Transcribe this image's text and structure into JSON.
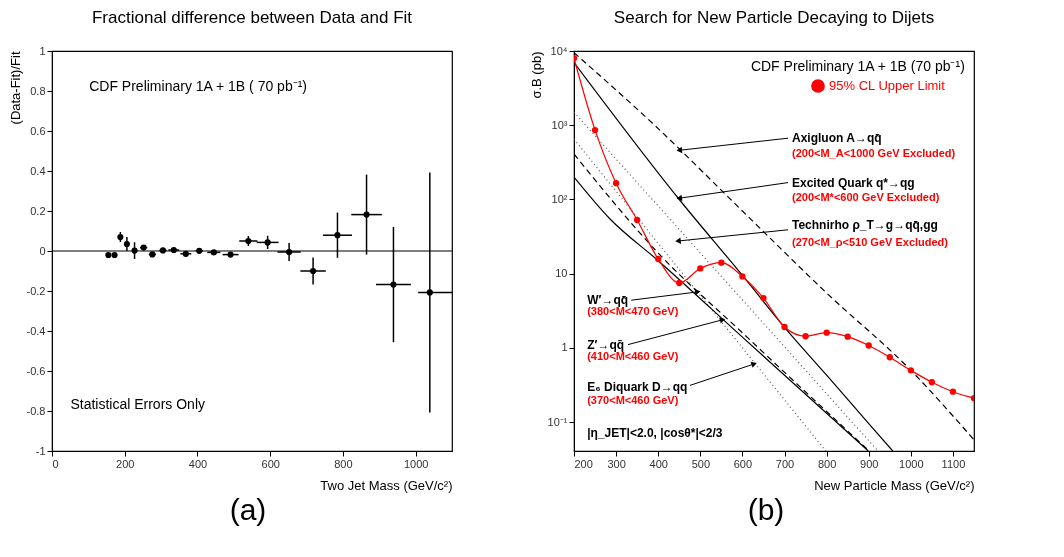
{
  "chart_data": [
    {
      "type": "scatter",
      "title": "Fractional difference between Data and Fit",
      "xlabel": "Two Jet Mass  (GeV/c²)",
      "ylabel": "(Data-Fit)/Fit",
      "xlim": [
        0,
        1100
      ],
      "xticks": [
        0,
        200,
        400,
        600,
        800,
        1000
      ],
      "ylim": [
        -1,
        1
      ],
      "yticks": [
        -1,
        -0.8,
        -0.6,
        -0.4,
        -0.2,
        0,
        0.2,
        0.4,
        0.6,
        0.8,
        1
      ],
      "grid": false,
      "series": [
        {
          "color": "#000000",
          "marker": "circle",
          "x": [
            155,
            172,
            188,
            206,
            227,
            252,
            276,
            305,
            335,
            368,
            405,
            445,
            491,
            540,
            593,
            652,
            718,
            785,
            865,
            939,
            1039
          ],
          "values": [
            -0.02,
            -0.02,
            0.07,
            0.035,
            0.002,
            0.017,
            -0.017,
            0.003,
            0.005,
            -0.014,
            0.001,
            -0.007,
            -0.018,
            0.05,
            0.043,
            -0.005,
            -0.1,
            0.079,
            0.182,
            -0.168,
            -0.207
          ],
          "errors": [
            0.012,
            0.012,
            0.025,
            0.035,
            0.042,
            0.008,
            0.01,
            0.006,
            0.008,
            0.012,
            0.006,
            0.008,
            0.008,
            0.025,
            0.033,
            0.045,
            0.068,
            0.113,
            0.2,
            0.288,
            0.6
          ],
          "xerrors": [
            null,
            null,
            null,
            null,
            null,
            10,
            10,
            10,
            15,
            15,
            10,
            18,
            22,
            25,
            30,
            32,
            35,
            40,
            42,
            48,
            [
              1007,
              1100
            ]
          ]
        }
      ],
      "ref_lines": [
        {
          "axis": "y",
          "value": 0,
          "color": "#000000"
        }
      ],
      "annotations": [
        "CDF Preliminary 1A + 1B ( 70 pb⁻¹)",
        "Statistical Errors Only",
        "(a)"
      ]
    },
    {
      "type": "line",
      "title": "Search for New Particle Decaying to Dijets",
      "xlabel": "New Particle Mass (GeV/c²)",
      "ylabel": "σ.B (pb)",
      "log": "y",
      "xlim": [
        200,
        1150
      ],
      "xticks": [
        200,
        300,
        400,
        500,
        600,
        700,
        800,
        900,
        1000,
        1100
      ],
      "ylim": [
        0.041,
        10000
      ],
      "yticks": [
        {
          "value": 0.1,
          "label": "10⁻¹"
        },
        {
          "value": 1,
          "label": "1"
        },
        {
          "value": 10,
          "label": "10"
        },
        {
          "value": 100,
          "label": "10²"
        },
        {
          "value": 1000,
          "label": "10³"
        },
        {
          "value": 10000,
          "label": "10⁴"
        }
      ],
      "grid": false,
      "legend": "top right",
      "series": [
        {
          "color": "#000000",
          "line_style": "dashed",
          "marker": "none",
          "x": [
            200,
            400,
            600,
            800,
            1000,
            1150
          ],
          "values": [
            9500,
            900,
            70,
            5.5,
            0.5,
            0.058
          ]
        },
        {
          "color": "#000000",
          "line_style": "solid",
          "marker": "none",
          "x": [
            200,
            450,
            600,
            700,
            800,
            900,
            957
          ],
          "values": [
            7000,
            100,
            9.5,
            1.9,
            0.43,
            0.096,
            0.041
          ]
        },
        {
          "color": "#555555",
          "line_style": "dotted",
          "marker": "none",
          "x": [
            200,
            922
          ],
          "values": [
            1500,
            0.041
          ]
        },
        {
          "color": "#555555",
          "line_style": "dotted",
          "marker": "none",
          "x": [
            200,
            798
          ],
          "values": [
            650,
            0.041
          ]
        },
        {
          "color": "#000000",
          "line_style": "dashed",
          "marker": "none",
          "x": [
            200,
            400,
            600,
            901
          ],
          "values": [
            410,
            19,
            1.6,
            0.041
          ]
        },
        {
          "color": "#000000",
          "line_style": "solid",
          "marker": "none",
          "x": [
            200,
            285,
            400,
            600,
            899
          ],
          "values": [
            200,
            55,
            15,
            1.4,
            0.041
          ]
        },
        {
          "name": "95% CL Upper Limit",
          "color": "#ff0000",
          "line_style": "solid",
          "marker": "circle",
          "x": [
            200,
            250,
            300,
            350,
            400,
            450,
            500,
            550,
            600,
            650,
            700,
            750,
            800,
            850,
            900,
            950,
            1000,
            1050,
            1100,
            1150
          ],
          "values": [
            8000,
            860,
            166,
            53,
            15.8,
            7.5,
            11.8,
            14.1,
            9.2,
            4.7,
            1.92,
            1.44,
            1.61,
            1.42,
            1.08,
            0.75,
            0.5,
            0.346,
            0.258,
            0.211
          ]
        }
      ],
      "annotations": [
        "CDF Preliminary 1A + 1B (70 pb⁻¹)",
        {
          "text": "Axigluon A→qq̄",
          "x": 450,
          "y": 460
        },
        "(200<M_A<1000 GeV Excluded)",
        {
          "text": "Excited Quark q*→qg",
          "x": 450,
          "y": 104
        },
        "(200<M*<600 GeV Excluded)",
        {
          "text": "Technirho ρ_T→g→qq̄,gg",
          "x": 447,
          "y": 27.6
        },
        "(270<M_ρ<510 GeV Excluded)",
        {
          "text": "W′→qq̄",
          "x": 494,
          "y": 5.7
        },
        "(380<M<470 GeV)",
        {
          "text": "Z′→qq̄",
          "x": 553,
          "y": 2.4
        },
        "(410<M<460 GeV)",
        {
          "text": "E₆ Diquark D→qq",
          "x": 628,
          "y": 0.61
        },
        "(370<M<460 GeV)",
        "|η_JET|<2.0,  |cosθ*|<2/3",
        "(b)"
      ]
    }
  ]
}
